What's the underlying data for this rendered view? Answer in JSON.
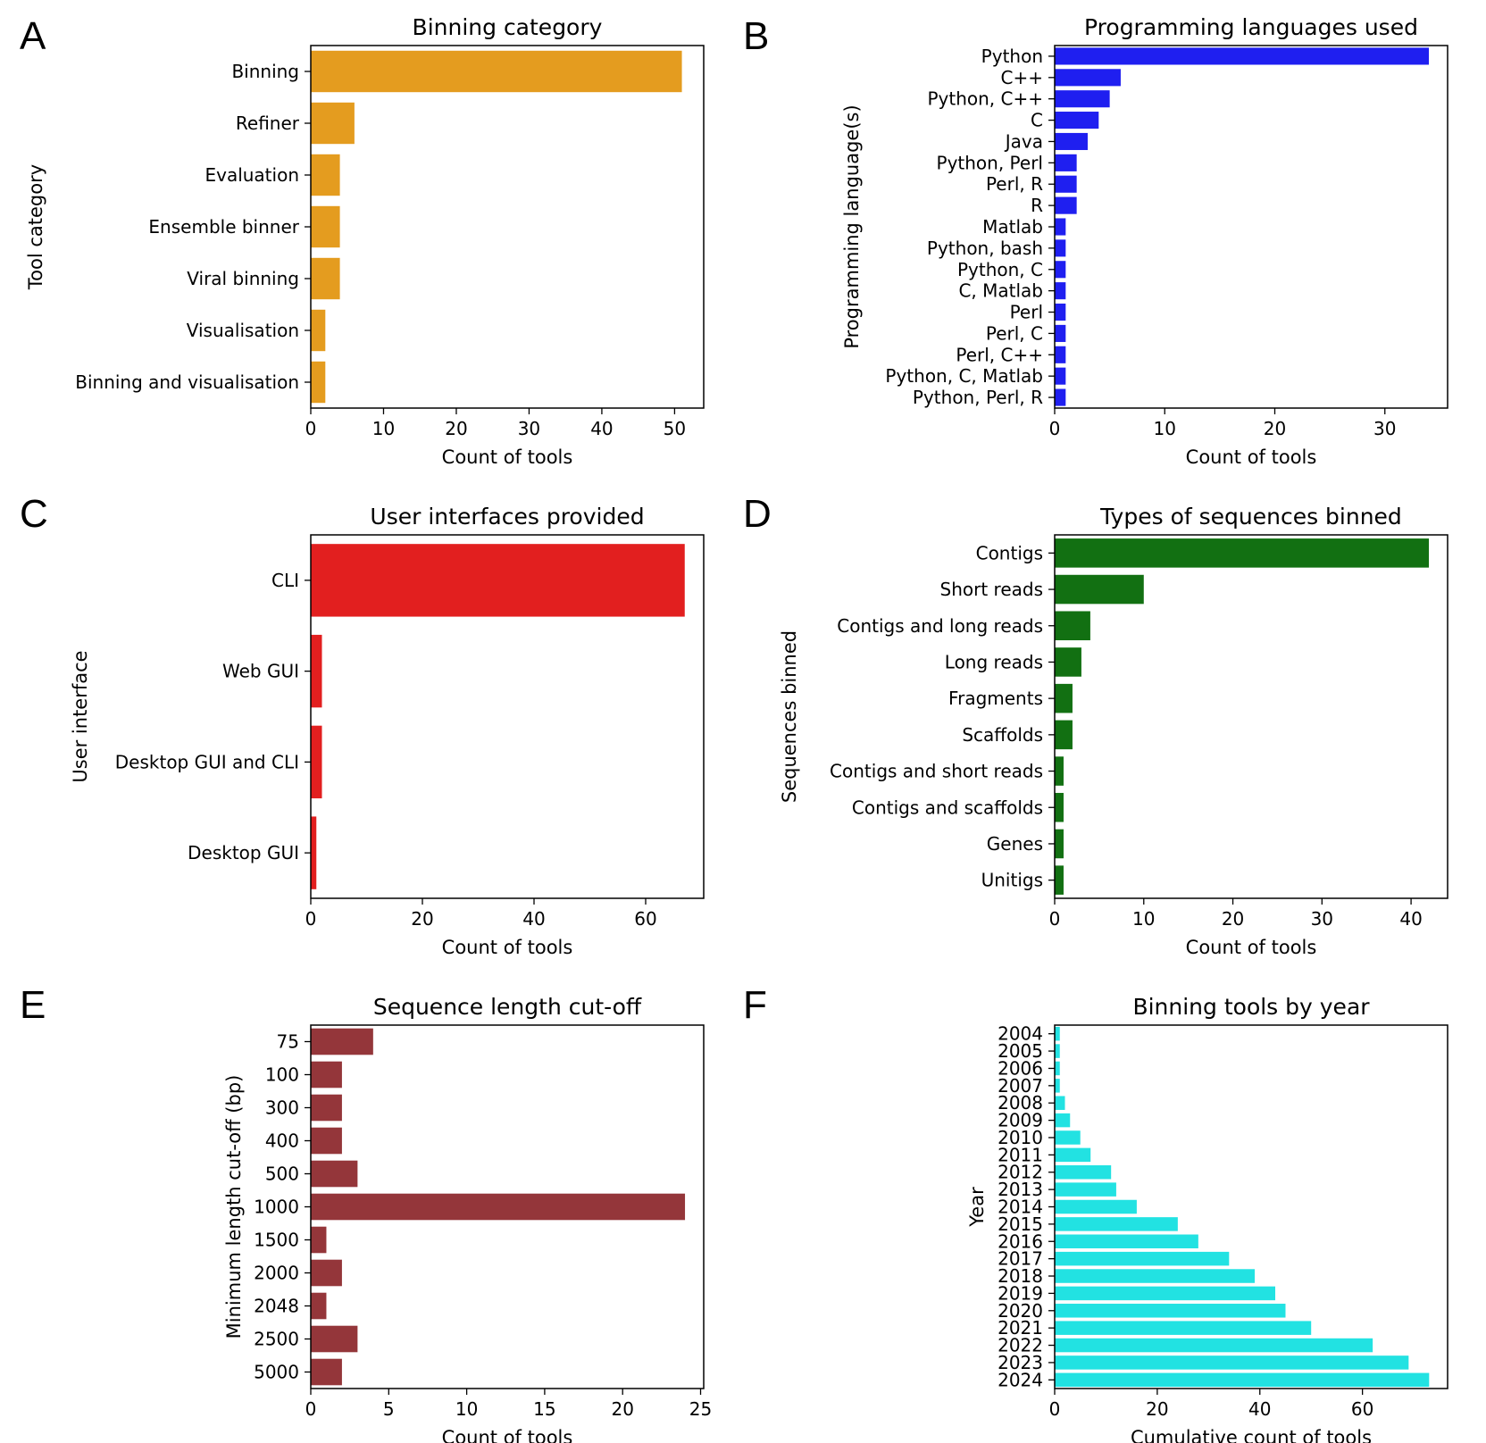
{
  "figure": {
    "panels": [
      {
        "letter": "A",
        "chart_data": {
          "type": "bar",
          "orientation": "horizontal",
          "title": "Binning category",
          "xlabel": "Count of tools",
          "ylabel": "Tool category",
          "categories": [
            "Binning",
            "Refiner",
            "Evaluation",
            "Ensemble binner",
            "Viral binning",
            "Visualisation",
            "Binning and visualisation"
          ],
          "values": [
            51,
            6,
            4,
            4,
            4,
            2,
            2
          ],
          "xlim": [
            0,
            54
          ],
          "xticks": [
            0,
            10,
            20,
            30,
            40,
            50
          ],
          "color": "#e49c1f",
          "grid": false
        }
      },
      {
        "letter": "B",
        "chart_data": {
          "type": "bar",
          "orientation": "horizontal",
          "title": "Programming languages used",
          "xlabel": "Count of tools",
          "ylabel": "Programming language(s)",
          "categories": [
            "Python",
            "C++",
            "Python, C++",
            "C",
            "Java",
            "Python, Perl",
            "Perl, R",
            "R",
            "Matlab",
            "Python, bash",
            "Python, C",
            "C, Matlab",
            "Perl",
            "Perl, C",
            "Perl, C++",
            "Python, C, Matlab",
            "Python, Perl, R"
          ],
          "values": [
            34,
            6,
            5,
            4,
            3,
            2,
            2,
            2,
            1,
            1,
            1,
            1,
            1,
            1,
            1,
            1,
            1
          ],
          "xlim": [
            0,
            35.7
          ],
          "xticks": [
            0,
            10,
            20,
            30
          ],
          "color": "#1f1ff0",
          "grid": false
        }
      },
      {
        "letter": "C",
        "chart_data": {
          "type": "bar",
          "orientation": "horizontal",
          "title": "User interfaces provided",
          "xlabel": "Count of tools",
          "ylabel": "User interface",
          "categories": [
            "CLI",
            "Web GUI",
            "Desktop GUI and CLI",
            "Desktop GUI"
          ],
          "values": [
            67,
            2,
            2,
            1
          ],
          "xlim": [
            0,
            70.4
          ],
          "xticks": [
            0,
            20,
            40,
            60
          ],
          "color": "#e21f1f",
          "grid": false
        }
      },
      {
        "letter": "D",
        "chart_data": {
          "type": "bar",
          "orientation": "horizontal",
          "title": "Types of sequences binned",
          "xlabel": "Count of tools",
          "ylabel": "Sequences binned",
          "categories": [
            "Contigs",
            "Short reads",
            "Contigs and long reads",
            "Long reads",
            "Fragments",
            "Scaffolds",
            "Contigs and short reads",
            "Contigs and scaffolds",
            "Genes",
            "Unitigs"
          ],
          "values": [
            42,
            10,
            4,
            3,
            2,
            2,
            1,
            1,
            1,
            1
          ],
          "xlim": [
            0,
            44.1
          ],
          "xticks": [
            0,
            10,
            20,
            30,
            40
          ],
          "color": "#127012",
          "grid": false
        }
      },
      {
        "letter": "E",
        "chart_data": {
          "type": "bar",
          "orientation": "horizontal",
          "title": "Sequence length cut-off",
          "xlabel": "Count of tools",
          "ylabel": "Minimum length cut-off (bp)",
          "categories": [
            "75",
            "100",
            "300",
            "400",
            "500",
            "1000",
            "1500",
            "2000",
            "2048",
            "2500",
            "5000"
          ],
          "values": [
            4,
            2,
            2,
            2,
            3,
            24,
            1,
            2,
            1,
            3,
            2
          ],
          "xlim": [
            0,
            25.2
          ],
          "xticks": [
            0,
            5,
            10,
            15,
            20,
            25
          ],
          "color": "#94363a",
          "grid": false
        }
      },
      {
        "letter": "F",
        "chart_data": {
          "type": "bar",
          "orientation": "horizontal",
          "title": "Binning tools by year",
          "xlabel": "Cumulative count of tools",
          "ylabel": "Year",
          "categories": [
            "2004",
            "2005",
            "2006",
            "2007",
            "2008",
            "2009",
            "2010",
            "2011",
            "2012",
            "2013",
            "2014",
            "2015",
            "2016",
            "2017",
            "2018",
            "2019",
            "2020",
            "2021",
            "2022",
            "2023",
            "2024"
          ],
          "values": [
            1,
            1,
            1,
            1,
            2,
            3,
            5,
            7,
            11,
            12,
            16,
            24,
            28,
            34,
            39,
            43,
            45,
            50,
            62,
            69,
            73
          ],
          "xlim": [
            0,
            76.6
          ],
          "xticks": [
            0,
            20,
            40,
            60
          ],
          "color": "#22e2e2",
          "grid": false
        }
      }
    ]
  }
}
